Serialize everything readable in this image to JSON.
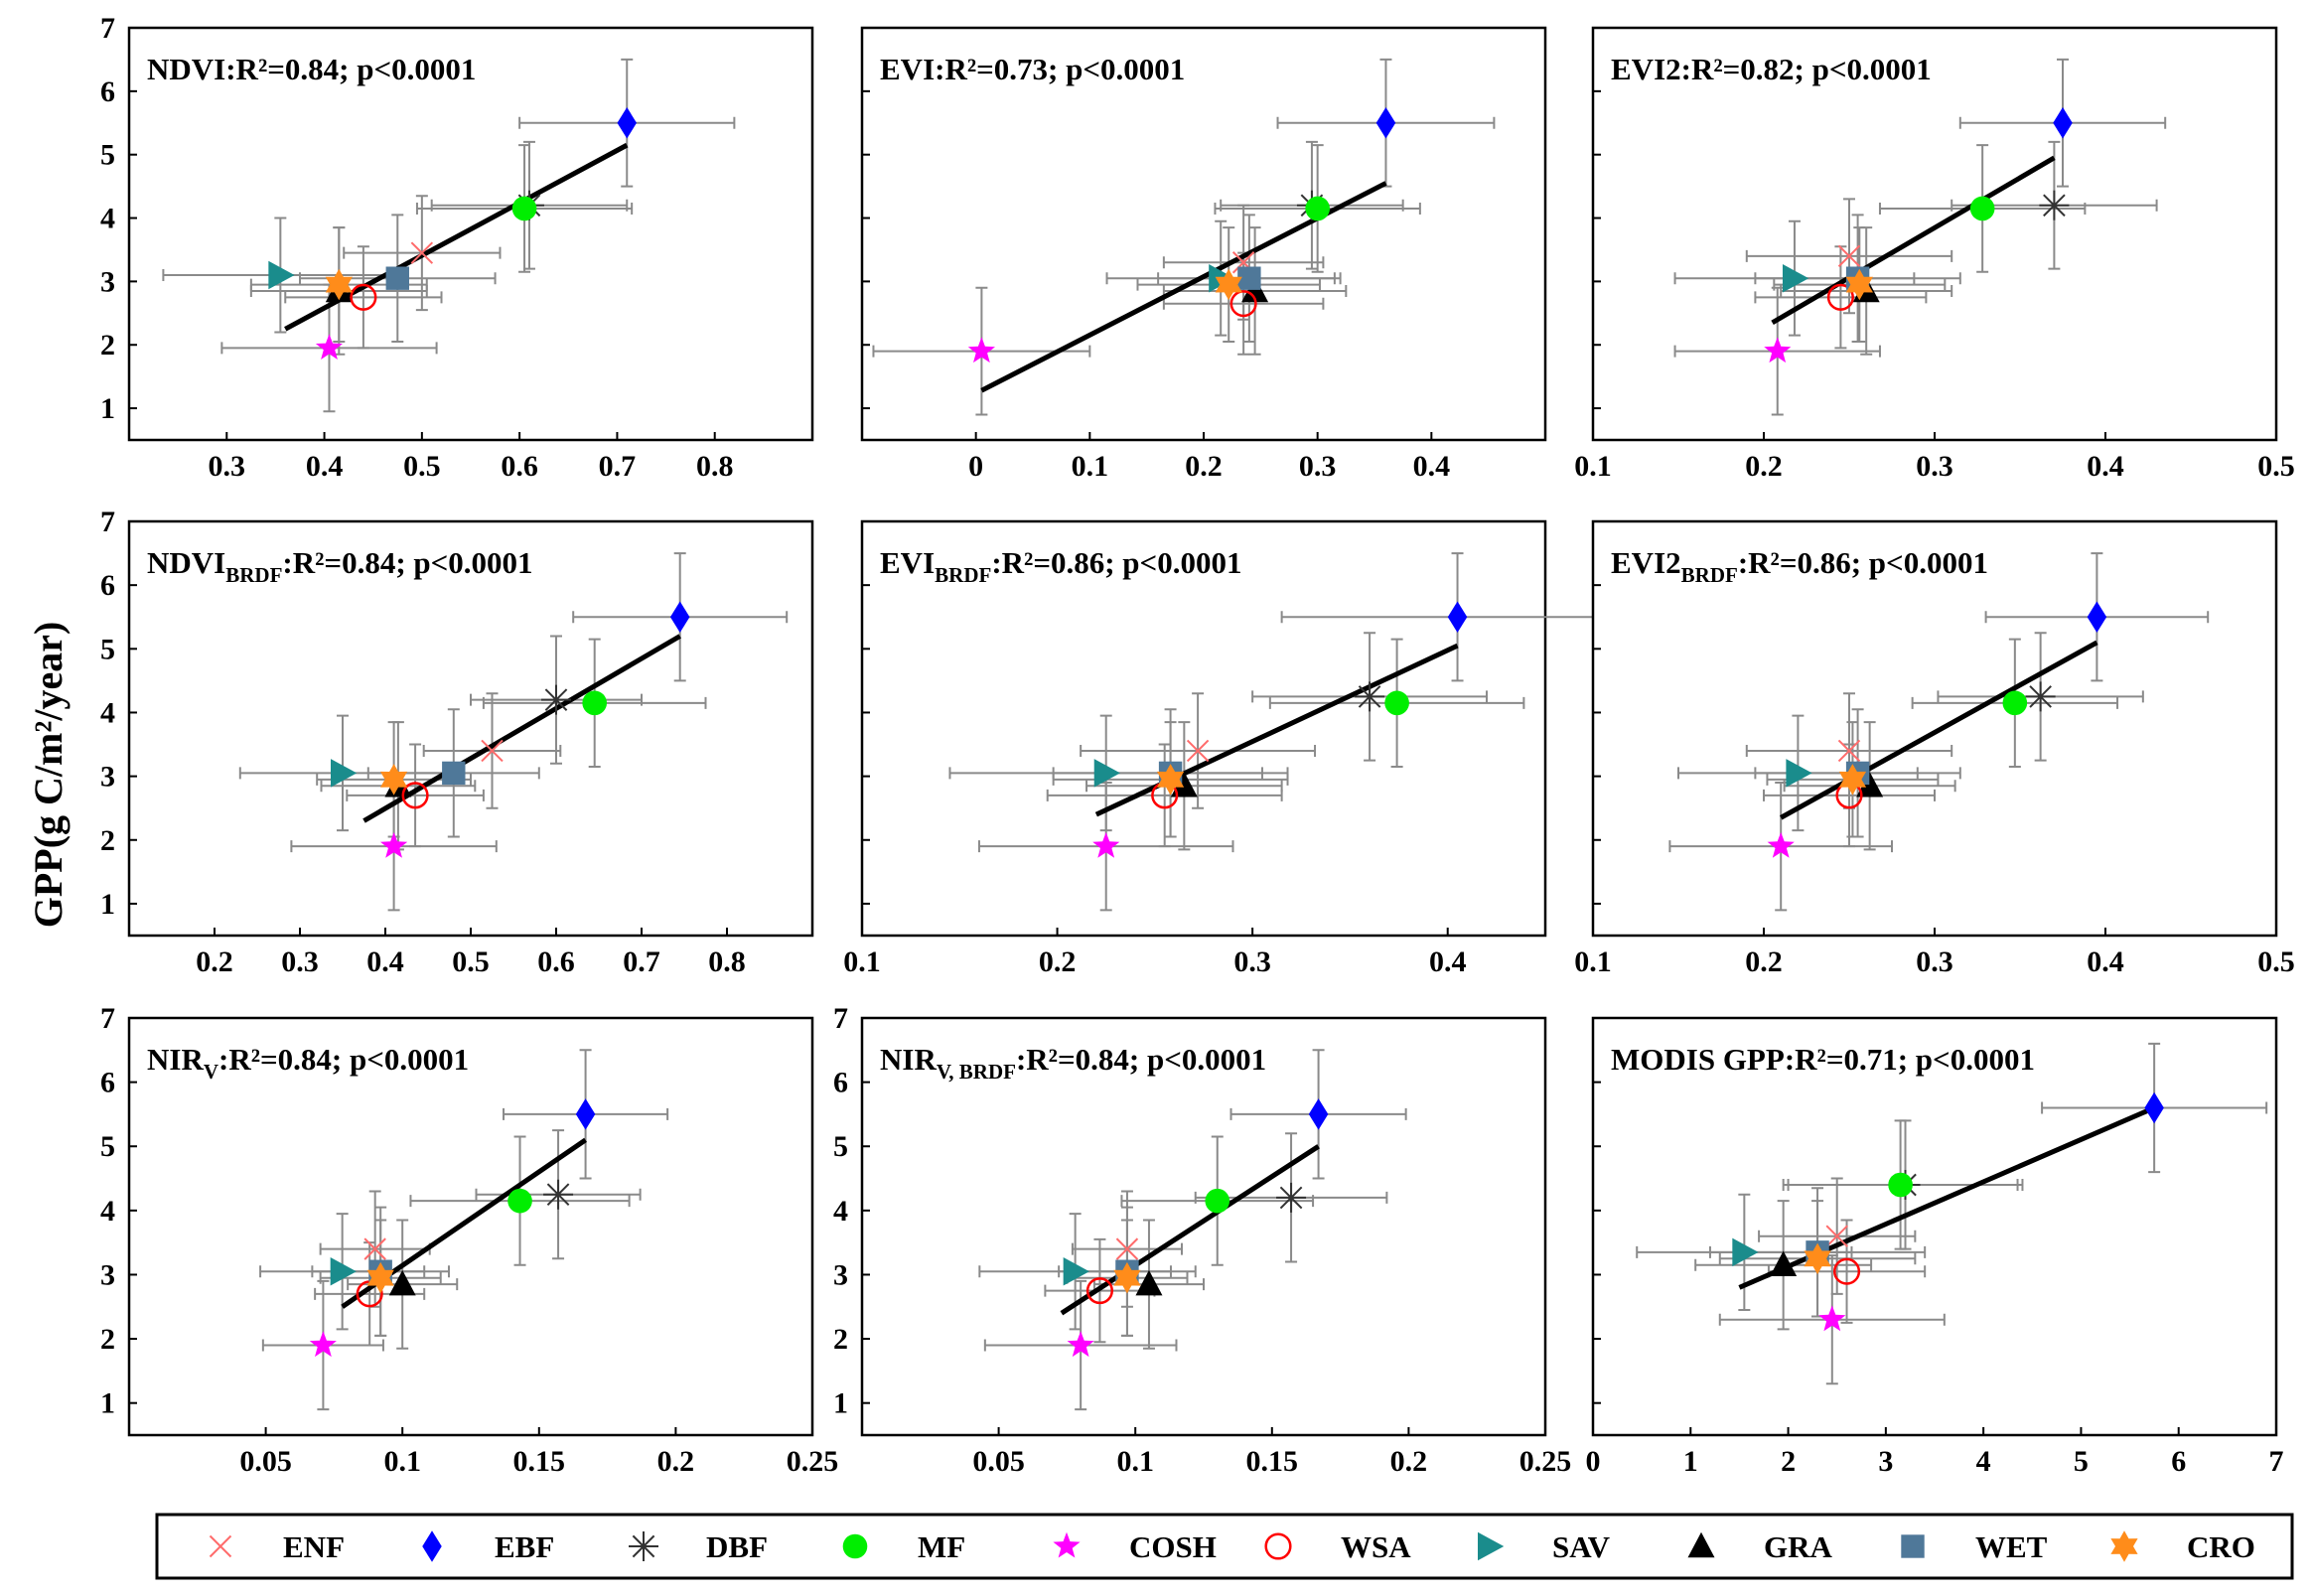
{
  "figure": {
    "ylabel": "GPP(g C/m²/year)"
  },
  "legend": [
    {
      "key": "ENF",
      "label": "ENF",
      "marker": "x",
      "color": "#ff6b6b"
    },
    {
      "key": "EBF",
      "label": "EBF",
      "marker": "diamond",
      "color": "#0000ff"
    },
    {
      "key": "DBF",
      "label": "DBF",
      "marker": "asterisk",
      "color": "#333333"
    },
    {
      "key": "MF",
      "label": "MF",
      "marker": "circle",
      "color": "#00ee00"
    },
    {
      "key": "COSH",
      "label": "COSH",
      "marker": "star5",
      "color": "#ff00ff"
    },
    {
      "key": "WSA",
      "label": "WSA",
      "marker": "circle-open",
      "color": "#ff0000"
    },
    {
      "key": "SAV",
      "label": "SAV",
      "marker": "triangle-right",
      "color": "#1a8c8c"
    },
    {
      "key": "GRA",
      "label": "GRA",
      "marker": "triangle-up",
      "color": "#000000"
    },
    {
      "key": "WET",
      "label": "WET",
      "marker": "square",
      "color": "#4f7899"
    },
    {
      "key": "CRO",
      "label": "CRO",
      "marker": "star6",
      "color": "#ff8c1a"
    }
  ],
  "chart_data": [
    {
      "type": "scatter",
      "name": "NDVI",
      "title_main": "NDVI",
      "title_sub": "",
      "stat": ":R²=0.84; p<0.0001",
      "xlim": [
        0.2,
        0.9
      ],
      "xticks": [
        "0.3",
        "0.4",
        "0.5",
        "0.6",
        "0.7",
        "0.8"
      ],
      "ylim": [
        0.5,
        7
      ],
      "yticks": [
        "1",
        "2",
        "3",
        "4",
        "5",
        "6",
        "7"
      ],
      "show_y": true,
      "fit": [
        [
          0.36,
          2.25
        ],
        [
          0.71,
          5.15
        ]
      ],
      "points": [
        {
          "type": "ENF",
          "x": 0.5,
          "y": 3.45,
          "xerr": 0.08,
          "yerr": 0.9
        },
        {
          "type": "EBF",
          "x": 0.71,
          "y": 5.5,
          "xerr": 0.11,
          "yerr": 1.0
        },
        {
          "type": "DBF",
          "x": 0.61,
          "y": 4.2,
          "xerr": 0.1,
          "yerr": 1.0
        },
        {
          "type": "MF",
          "x": 0.605,
          "y": 4.15,
          "xerr": 0.11,
          "yerr": 1.0
        },
        {
          "type": "COSH",
          "x": 0.405,
          "y": 1.95,
          "xerr": 0.11,
          "yerr": 1.0
        },
        {
          "type": "WSA",
          "x": 0.44,
          "y": 2.75,
          "xerr": 0.08,
          "yerr": 0.8
        },
        {
          "type": "SAV",
          "x": 0.355,
          "y": 3.1,
          "xerr": 0.12,
          "yerr": 0.9
        },
        {
          "type": "GRA",
          "x": 0.415,
          "y": 2.85,
          "xerr": 0.09,
          "yerr": 1.0
        },
        {
          "type": "WET",
          "x": 0.475,
          "y": 3.05,
          "xerr": 0.1,
          "yerr": 1.0
        },
        {
          "type": "CRO",
          "x": 0.415,
          "y": 2.95,
          "xerr": 0.09,
          "yerr": 0.9
        }
      ]
    },
    {
      "type": "scatter",
      "name": "EVI",
      "title_main": "EVI",
      "title_sub": "",
      "stat": ":R²=0.73; p<0.0001",
      "xlim": [
        -0.1,
        0.5
      ],
      "xticks": [
        "0",
        "0.1",
        "0.2",
        "0.3",
        "0.4"
      ],
      "ylim": [
        0.5,
        7
      ],
      "yticks": [
        "1",
        "2",
        "3",
        "4",
        "5",
        "6",
        "7"
      ],
      "show_y": false,
      "fit": [
        [
          0.005,
          1.28
        ],
        [
          0.36,
          4.55
        ]
      ],
      "points": [
        {
          "type": "ENF",
          "x": 0.235,
          "y": 3.3,
          "xerr": 0.07,
          "yerr": 0.9
        },
        {
          "type": "EBF",
          "x": 0.36,
          "y": 5.5,
          "xerr": 0.095,
          "yerr": 1.0
        },
        {
          "type": "DBF",
          "x": 0.295,
          "y": 4.2,
          "xerr": 0.08,
          "yerr": 1.0
        },
        {
          "type": "MF",
          "x": 0.3,
          "y": 4.15,
          "xerr": 0.09,
          "yerr": 1.0
        },
        {
          "type": "COSH",
          "x": 0.005,
          "y": 1.9,
          "xerr": 0.095,
          "yerr": 1.0
        },
        {
          "type": "WSA",
          "x": 0.235,
          "y": 2.65,
          "xerr": 0.07,
          "yerr": 0.8
        },
        {
          "type": "SAV",
          "x": 0.215,
          "y": 3.05,
          "xerr": 0.1,
          "yerr": 0.9
        },
        {
          "type": "GRA",
          "x": 0.245,
          "y": 2.85,
          "xerr": 0.08,
          "yerr": 1.0
        },
        {
          "type": "WET",
          "x": 0.24,
          "y": 3.05,
          "xerr": 0.08,
          "yerr": 1.0
        },
        {
          "type": "CRO",
          "x": 0.222,
          "y": 2.95,
          "xerr": 0.08,
          "yerr": 0.9
        }
      ]
    },
    {
      "type": "scatter",
      "name": "EVI2",
      "title_main": "EVI2",
      "title_sub": "",
      "stat": ":R²=0.82; p<0.0001",
      "xlim": [
        0.1,
        0.5
      ],
      "xticks": [
        "0.1",
        "0.2",
        "0.3",
        "0.4",
        "0.5"
      ],
      "ylim": [
        0.5,
        7
      ],
      "yticks": [
        "1",
        "2",
        "3",
        "4",
        "5",
        "6",
        "7"
      ],
      "show_y": false,
      "fit": [
        [
          0.205,
          2.35
        ],
        [
          0.37,
          4.95
        ]
      ],
      "points": [
        {
          "type": "ENF",
          "x": 0.25,
          "y": 3.4,
          "xerr": 0.06,
          "yerr": 0.9
        },
        {
          "type": "EBF",
          "x": 0.375,
          "y": 5.5,
          "xerr": 0.06,
          "yerr": 1.0
        },
        {
          "type": "DBF",
          "x": 0.37,
          "y": 4.2,
          "xerr": 0.06,
          "yerr": 1.0
        },
        {
          "type": "MF",
          "x": 0.328,
          "y": 4.15,
          "xerr": 0.06,
          "yerr": 1.0
        },
        {
          "type": "COSH",
          "x": 0.208,
          "y": 1.9,
          "xerr": 0.06,
          "yerr": 1.0
        },
        {
          "type": "WSA",
          "x": 0.245,
          "y": 2.75,
          "xerr": 0.05,
          "yerr": 0.8
        },
        {
          "type": "SAV",
          "x": 0.218,
          "y": 3.05,
          "xerr": 0.07,
          "yerr": 0.9
        },
        {
          "type": "GRA",
          "x": 0.26,
          "y": 2.85,
          "xerr": 0.05,
          "yerr": 1.0
        },
        {
          "type": "WET",
          "x": 0.255,
          "y": 3.05,
          "xerr": 0.06,
          "yerr": 1.0
        },
        {
          "type": "CRO",
          "x": 0.256,
          "y": 2.95,
          "xerr": 0.05,
          "yerr": 0.9
        }
      ]
    },
    {
      "type": "scatter",
      "name": "NDVI BRDF",
      "title_main": "NDVI",
      "title_sub": "BRDF",
      "stat": ":R²=0.84; p<0.0001",
      "xlim": [
        0.1,
        0.9
      ],
      "xticks": [
        "0.2",
        "0.3",
        "0.4",
        "0.5",
        "0.6",
        "0.7",
        "0.8"
      ],
      "ylim": [
        0.5,
        7
      ],
      "yticks": [
        "1",
        "2",
        "3",
        "4",
        "5",
        "6",
        "7"
      ],
      "show_y": true,
      "fit": [
        [
          0.375,
          2.3
        ],
        [
          0.745,
          5.2
        ]
      ],
      "points": [
        {
          "type": "ENF",
          "x": 0.525,
          "y": 3.4,
          "xerr": 0.08,
          "yerr": 0.9
        },
        {
          "type": "EBF",
          "x": 0.745,
          "y": 5.5,
          "xerr": 0.125,
          "yerr": 1.0
        },
        {
          "type": "DBF",
          "x": 0.6,
          "y": 4.2,
          "xerr": 0.1,
          "yerr": 1.0
        },
        {
          "type": "MF",
          "x": 0.645,
          "y": 4.15,
          "xerr": 0.13,
          "yerr": 1.0
        },
        {
          "type": "COSH",
          "x": 0.41,
          "y": 1.9,
          "xerr": 0.12,
          "yerr": 1.0
        },
        {
          "type": "WSA",
          "x": 0.435,
          "y": 2.7,
          "xerr": 0.08,
          "yerr": 0.8
        },
        {
          "type": "SAV",
          "x": 0.35,
          "y": 3.05,
          "xerr": 0.12,
          "yerr": 0.9
        },
        {
          "type": "GRA",
          "x": 0.415,
          "y": 2.85,
          "xerr": 0.09,
          "yerr": 1.0
        },
        {
          "type": "WET",
          "x": 0.48,
          "y": 3.05,
          "xerr": 0.1,
          "yerr": 1.0
        },
        {
          "type": "CRO",
          "x": 0.41,
          "y": 2.95,
          "xerr": 0.09,
          "yerr": 0.9
        }
      ]
    },
    {
      "type": "scatter",
      "name": "EVI BRDF",
      "title_main": "EVI",
      "title_sub": "BRDF",
      "stat": ":R²=0.86; p<0.0001",
      "xlim": [
        0.1,
        0.45
      ],
      "xticks": [
        "0.1",
        "0.2",
        "0.3",
        "0.4"
      ],
      "ylim": [
        0.5,
        7
      ],
      "yticks": [
        "1",
        "2",
        "3",
        "4",
        "5",
        "6",
        "7"
      ],
      "show_y": false,
      "fit": [
        [
          0.22,
          2.4
        ],
        [
          0.405,
          5.05
        ]
      ],
      "points": [
        {
          "type": "ENF",
          "x": 0.272,
          "y": 3.4,
          "xerr": 0.06,
          "yerr": 0.9
        },
        {
          "type": "EBF",
          "x": 0.405,
          "y": 5.5,
          "xerr": 0.09,
          "yerr": 1.0
        },
        {
          "type": "DBF",
          "x": 0.36,
          "y": 4.25,
          "xerr": 0.06,
          "yerr": 1.0
        },
        {
          "type": "MF",
          "x": 0.374,
          "y": 4.15,
          "xerr": 0.065,
          "yerr": 1.0
        },
        {
          "type": "COSH",
          "x": 0.225,
          "y": 1.9,
          "xerr": 0.065,
          "yerr": 1.0
        },
        {
          "type": "WSA",
          "x": 0.255,
          "y": 2.7,
          "xerr": 0.06,
          "yerr": 0.8
        },
        {
          "type": "SAV",
          "x": 0.225,
          "y": 3.05,
          "xerr": 0.08,
          "yerr": 0.9
        },
        {
          "type": "GRA",
          "x": 0.265,
          "y": 2.85,
          "xerr": 0.05,
          "yerr": 1.0
        },
        {
          "type": "WET",
          "x": 0.258,
          "y": 3.05,
          "xerr": 0.06,
          "yerr": 1.0
        },
        {
          "type": "CRO",
          "x": 0.258,
          "y": 2.95,
          "xerr": 0.06,
          "yerr": 0.9
        }
      ]
    },
    {
      "type": "scatter",
      "name": "EVI2 BRDF",
      "title_main": "EVI2",
      "title_sub": "BRDF",
      "stat": ":R²=0.86; p<0.0001",
      "xlim": [
        0.1,
        0.5
      ],
      "xticks": [
        "0.1",
        "0.2",
        "0.3",
        "0.4",
        "0.5"
      ],
      "ylim": [
        0.5,
        7
      ],
      "yticks": [
        "1",
        "2",
        "3",
        "4",
        "5",
        "6",
        "7"
      ],
      "show_y": false,
      "fit": [
        [
          0.21,
          2.35
        ],
        [
          0.395,
          5.1
        ]
      ],
      "points": [
        {
          "type": "ENF",
          "x": 0.25,
          "y": 3.4,
          "xerr": 0.06,
          "yerr": 0.9
        },
        {
          "type": "EBF",
          "x": 0.395,
          "y": 5.5,
          "xerr": 0.065,
          "yerr": 1.0
        },
        {
          "type": "DBF",
          "x": 0.362,
          "y": 4.25,
          "xerr": 0.06,
          "yerr": 1.0
        },
        {
          "type": "MF",
          "x": 0.347,
          "y": 4.15,
          "xerr": 0.06,
          "yerr": 1.0
        },
        {
          "type": "COSH",
          "x": 0.21,
          "y": 1.9,
          "xerr": 0.065,
          "yerr": 1.0
        },
        {
          "type": "WSA",
          "x": 0.25,
          "y": 2.7,
          "xerr": 0.05,
          "yerr": 0.8
        },
        {
          "type": "SAV",
          "x": 0.22,
          "y": 3.05,
          "xerr": 0.07,
          "yerr": 0.9
        },
        {
          "type": "GRA",
          "x": 0.262,
          "y": 2.85,
          "xerr": 0.05,
          "yerr": 1.0
        },
        {
          "type": "WET",
          "x": 0.255,
          "y": 3.05,
          "xerr": 0.06,
          "yerr": 1.0
        },
        {
          "type": "CRO",
          "x": 0.252,
          "y": 2.95,
          "xerr": 0.05,
          "yerr": 0.9
        }
      ]
    },
    {
      "type": "scatter",
      "name": "NIRV",
      "title_main": "NIR",
      "title_sub": "V",
      "stat": ":R²=0.84; p<0.0001",
      "xlim": [
        0.0,
        0.25
      ],
      "xticks": [
        "0.05",
        "0.1",
        "0.15",
        "0.2",
        "0.25"
      ],
      "ylim": [
        0.5,
        7
      ],
      "yticks": [
        "1",
        "2",
        "3",
        "4",
        "5",
        "6",
        "7"
      ],
      "show_y": true,
      "fit": [
        [
          0.078,
          2.5
        ],
        [
          0.167,
          5.1
        ]
      ],
      "points": [
        {
          "type": "ENF",
          "x": 0.09,
          "y": 3.4,
          "xerr": 0.02,
          "yerr": 0.9
        },
        {
          "type": "EBF",
          "x": 0.167,
          "y": 5.5,
          "xerr": 0.03,
          "yerr": 1.0
        },
        {
          "type": "DBF",
          "x": 0.157,
          "y": 4.25,
          "xerr": 0.03,
          "yerr": 1.0
        },
        {
          "type": "MF",
          "x": 0.143,
          "y": 4.15,
          "xerr": 0.04,
          "yerr": 1.0
        },
        {
          "type": "COSH",
          "x": 0.071,
          "y": 1.9,
          "xerr": 0.022,
          "yerr": 1.0
        },
        {
          "type": "WSA",
          "x": 0.088,
          "y": 2.7,
          "xerr": 0.02,
          "yerr": 0.8
        },
        {
          "type": "SAV",
          "x": 0.078,
          "y": 3.05,
          "xerr": 0.03,
          "yerr": 0.9
        },
        {
          "type": "GRA",
          "x": 0.1,
          "y": 2.85,
          "xerr": 0.02,
          "yerr": 1.0
        },
        {
          "type": "WET",
          "x": 0.092,
          "y": 3.05,
          "xerr": 0.025,
          "yerr": 1.0
        },
        {
          "type": "CRO",
          "x": 0.092,
          "y": 2.95,
          "xerr": 0.022,
          "yerr": 0.9
        }
      ]
    },
    {
      "type": "scatter",
      "name": "NIRV BRDF",
      "title_main": "NIR",
      "title_sub": "V, BRDF",
      "stat": ":R²=0.84; p<0.0001",
      "xlim": [
        0.0,
        0.25
      ],
      "xticks": [
        "0.05",
        "0.1",
        "0.15",
        "0.2",
        "0.25"
      ],
      "ylim": [
        0.5,
        7
      ],
      "yticks": [
        "1",
        "2",
        "3",
        "4",
        "5",
        "6",
        "7"
      ],
      "show_y": true,
      "fit": [
        [
          0.073,
          2.4
        ],
        [
          0.167,
          5.0
        ]
      ],
      "points": [
        {
          "type": "ENF",
          "x": 0.097,
          "y": 3.4,
          "xerr": 0.02,
          "yerr": 0.9
        },
        {
          "type": "EBF",
          "x": 0.167,
          "y": 5.5,
          "xerr": 0.032,
          "yerr": 1.0
        },
        {
          "type": "DBF",
          "x": 0.157,
          "y": 4.2,
          "xerr": 0.035,
          "yerr": 1.0
        },
        {
          "type": "MF",
          "x": 0.13,
          "y": 4.15,
          "xerr": 0.035,
          "yerr": 1.0
        },
        {
          "type": "COSH",
          "x": 0.08,
          "y": 1.9,
          "xerr": 0.035,
          "yerr": 1.0
        },
        {
          "type": "WSA",
          "x": 0.087,
          "y": 2.75,
          "xerr": 0.02,
          "yerr": 0.8
        },
        {
          "type": "SAV",
          "x": 0.078,
          "y": 3.05,
          "xerr": 0.035,
          "yerr": 0.9
        },
        {
          "type": "GRA",
          "x": 0.105,
          "y": 2.85,
          "xerr": 0.02,
          "yerr": 1.0
        },
        {
          "type": "WET",
          "x": 0.097,
          "y": 3.05,
          "xerr": 0.025,
          "yerr": 1.0
        },
        {
          "type": "CRO",
          "x": 0.097,
          "y": 2.95,
          "xerr": 0.022,
          "yerr": 0.9
        }
      ]
    },
    {
      "type": "scatter",
      "name": "MODIS GPP",
      "title_main": "MODIS GPP",
      "title_sub": "",
      "stat": ":R²=0.71; p<0.0001",
      "xlim": [
        0,
        7
      ],
      "xticks": [
        "0",
        "1",
        "2",
        "3",
        "4",
        "5",
        "6",
        "7"
      ],
      "ylim": [
        0.5,
        7
      ],
      "yticks": [
        "1",
        "2",
        "3",
        "4",
        "5",
        "6",
        "7"
      ],
      "show_y": false,
      "fit": [
        [
          1.5,
          2.8
        ],
        [
          5.75,
          5.6
        ]
      ],
      "points": [
        {
          "type": "ENF",
          "x": 2.5,
          "y": 3.6,
          "xerr": 0.8,
          "yerr": 0.9
        },
        {
          "type": "EBF",
          "x": 5.75,
          "y": 5.6,
          "xerr": 1.15,
          "yerr": 1.0
        },
        {
          "type": "DBF",
          "x": 3.2,
          "y": 4.4,
          "xerr": 1.2,
          "yerr": 1.0
        },
        {
          "type": "MF",
          "x": 3.15,
          "y": 4.4,
          "xerr": 1.2,
          "yerr": 1.0
        },
        {
          "type": "COSH",
          "x": 2.45,
          "y": 2.3,
          "xerr": 1.15,
          "yerr": 1.0
        },
        {
          "type": "WSA",
          "x": 2.6,
          "y": 3.05,
          "xerr": 0.8,
          "yerr": 0.8
        },
        {
          "type": "SAV",
          "x": 1.55,
          "y": 3.35,
          "xerr": 1.1,
          "yerr": 0.9
        },
        {
          "type": "GRA",
          "x": 1.95,
          "y": 3.15,
          "xerr": 0.9,
          "yerr": 1.0
        },
        {
          "type": "WET",
          "x": 2.3,
          "y": 3.35,
          "xerr": 1.1,
          "yerr": 1.0
        },
        {
          "type": "CRO",
          "x": 2.3,
          "y": 3.25,
          "xerr": 1.0,
          "yerr": 0.9
        }
      ]
    }
  ]
}
